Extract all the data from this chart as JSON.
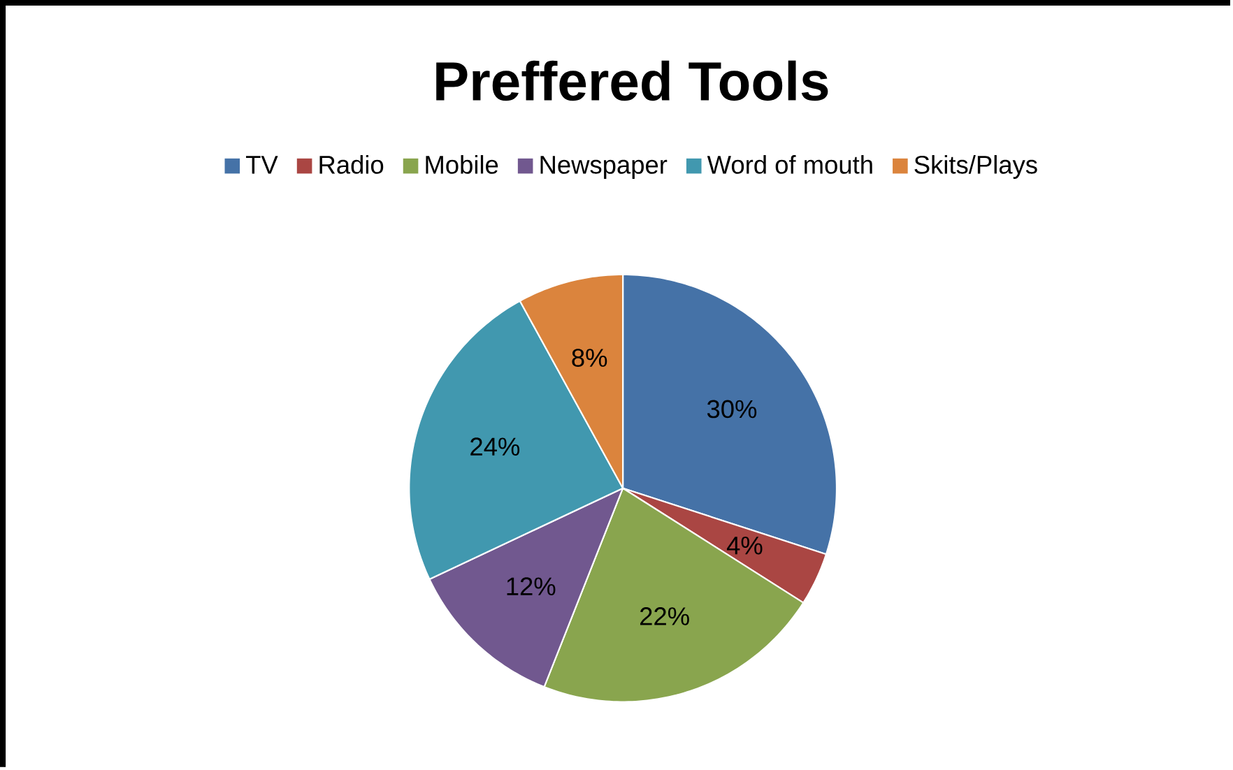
{
  "chart_data": {
    "type": "pie",
    "title": "Preffered Tools",
    "categories": [
      "TV",
      "Radio",
      "Mobile",
      "Newspaper",
      "Word of mouth",
      "Skits/Plays"
    ],
    "values": [
      30,
      4,
      22,
      12,
      24,
      8
    ],
    "value_labels": [
      "30%",
      "4%",
      "22%",
      "12%",
      "24%",
      "8%"
    ],
    "colors": [
      "#4572a7",
      "#aa4643",
      "#89a54e",
      "#71588f",
      "#4198af",
      "#db843d"
    ],
    "legend": "top"
  }
}
